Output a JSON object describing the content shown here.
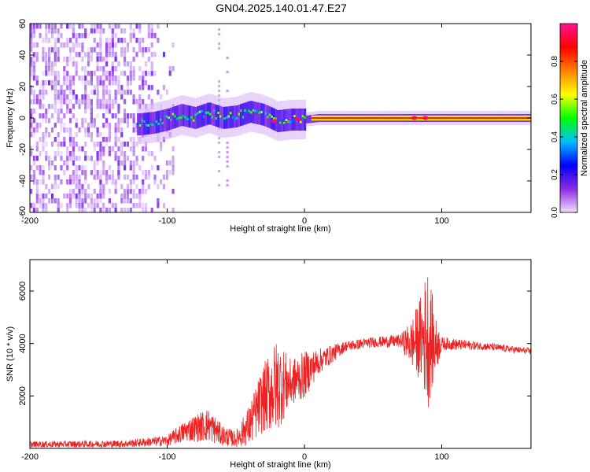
{
  "title": "GN04.2025.140.01.47.E27",
  "chart_data": [
    {
      "type": "heatmap",
      "xlabel": "Height of straight line (km)",
      "ylabel": "Frequency (Hz)",
      "xlim": [
        -200,
        165
      ],
      "ylim": [
        -60,
        60
      ],
      "xticks": [
        -200,
        -100,
        0,
        100
      ],
      "yticks": [
        -60,
        -40,
        -20,
        0,
        20,
        40,
        60
      ],
      "ridge_frequency": [
        {
          "x": -120,
          "y": -4
        },
        {
          "x": -110,
          "y": -3
        },
        {
          "x": -100,
          "y": -1
        },
        {
          "x": -90,
          "y": 2
        },
        {
          "x": -80,
          "y": 0
        },
        {
          "x": -70,
          "y": 3
        },
        {
          "x": -60,
          "y": 0
        },
        {
          "x": -50,
          "y": 1
        },
        {
          "x": -40,
          "y": 4
        },
        {
          "x": -30,
          "y": 2
        },
        {
          "x": -20,
          "y": -2
        },
        {
          "x": -10,
          "y": -1
        },
        {
          "x": 0,
          "y": -1
        },
        {
          "x": 10,
          "y": 0
        },
        {
          "x": 50,
          "y": 0
        },
        {
          "x": 100,
          "y": 0
        },
        {
          "x": 165,
          "y": 0
        }
      ],
      "colorbar": {
        "label": "Normalized spectral amplitude",
        "ticks": [
          0.0,
          0.2,
          0.4,
          0.6,
          0.8
        ],
        "range": [
          0,
          1
        ],
        "colors": [
          "#f0e0ff",
          "#8a2be2",
          "#0000ff",
          "#00c0ff",
          "#00ff00",
          "#ffff00",
          "#ff8000",
          "#ff0000",
          "#ff1493"
        ]
      }
    },
    {
      "type": "line",
      "xlabel": "Height of straight line (km)",
      "ylabel": "SNR (10 * v/v)",
      "xlim": [
        -200,
        165
      ],
      "ylim": [
        0,
        7200
      ],
      "xticks": [
        -200,
        -100,
        0,
        100
      ],
      "yticks": [
        2000,
        4000,
        6000
      ],
      "series_color": "#ee2222",
      "envelope": [
        {
          "x": -200,
          "mean": 150,
          "amp": 120
        },
        {
          "x": -130,
          "mean": 180,
          "amp": 140
        },
        {
          "x": -100,
          "mean": 300,
          "amp": 200
        },
        {
          "x": -85,
          "mean": 700,
          "amp": 450
        },
        {
          "x": -70,
          "mean": 900,
          "amp": 650
        },
        {
          "x": -60,
          "mean": 500,
          "amp": 400
        },
        {
          "x": -50,
          "mean": 350,
          "amp": 300
        },
        {
          "x": -40,
          "mean": 900,
          "amp": 800
        },
        {
          "x": -30,
          "mean": 1900,
          "amp": 1300
        },
        {
          "x": -20,
          "mean": 2400,
          "amp": 1800
        },
        {
          "x": -10,
          "mean": 2500,
          "amp": 900
        },
        {
          "x": 0,
          "mean": 2800,
          "amp": 900
        },
        {
          "x": 10,
          "mean": 3300,
          "amp": 500
        },
        {
          "x": 30,
          "mean": 3900,
          "amp": 200
        },
        {
          "x": 50,
          "mean": 4050,
          "amp": 200
        },
        {
          "x": 70,
          "mean": 4100,
          "amp": 250
        },
        {
          "x": 78,
          "mean": 4000,
          "amp": 900
        },
        {
          "x": 85,
          "mean": 4200,
          "amp": 1700
        },
        {
          "x": 90,
          "mean": 4300,
          "amp": 2800
        },
        {
          "x": 95,
          "mean": 3900,
          "amp": 1200
        },
        {
          "x": 100,
          "mean": 4000,
          "amp": 250
        },
        {
          "x": 130,
          "mean": 3900,
          "amp": 150
        },
        {
          "x": 165,
          "mean": 3700,
          "amp": 120
        }
      ]
    }
  ]
}
